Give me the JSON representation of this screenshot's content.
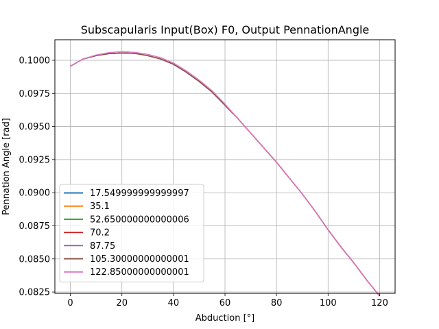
{
  "chart_data": {
    "type": "line",
    "title": "Subscapularis Input(Box) F0, Output PennationAngle",
    "xlabel": "Abduction [°]",
    "ylabel": "Pennation Angle [rad]",
    "xlim": [
      -6,
      126
    ],
    "ylim": [
      0.0824,
      0.10155
    ],
    "xticks": [
      0,
      20,
      40,
      60,
      80,
      100,
      120
    ],
    "xtick_labels": [
      "0",
      "20",
      "40",
      "60",
      "80",
      "100",
      "120"
    ],
    "yticks": [
      0.0825,
      0.085,
      0.0875,
      0.09,
      0.0925,
      0.095,
      0.0975,
      0.1
    ],
    "ytick_labels": [
      "0.0825",
      "0.0850",
      "0.0875",
      "0.0900",
      "0.0925",
      "0.0950",
      "0.0975",
      "0.1000"
    ],
    "grid": true,
    "legend_position": "lower-left",
    "x": [
      0,
      5,
      10,
      15,
      20,
      25,
      30,
      35,
      40,
      45,
      50,
      55,
      60,
      65,
      70,
      75,
      80,
      85,
      90,
      95,
      100,
      105,
      110,
      115,
      120
    ],
    "series": [
      {
        "name": "17.549999999999997",
        "color": "#1f77b4",
        "values": [
          0.09955,
          0.1001,
          0.10035,
          0.1005,
          0.10055,
          0.10052,
          0.10035,
          0.1001,
          0.0997,
          0.0991,
          0.0984,
          0.0976,
          0.0966,
          0.0956,
          0.0945,
          0.0934,
          0.0923,
          0.0911,
          0.0899,
          0.0886,
          0.0872,
          0.0859,
          0.0847,
          0.0834,
          0.0822
        ]
      },
      {
        "name": "35.1",
        "color": "#ff7f0e",
        "values": [
          0.09955,
          0.1001,
          0.10035,
          0.1005,
          0.10055,
          0.10052,
          0.10035,
          0.1001,
          0.0997,
          0.0991,
          0.0984,
          0.0976,
          0.0966,
          0.0956,
          0.0945,
          0.0934,
          0.0923,
          0.0911,
          0.0899,
          0.0886,
          0.0872,
          0.0859,
          0.0847,
          0.0834,
          0.0822
        ]
      },
      {
        "name": "52.650000000000006",
        "color": "#2ca02c",
        "values": [
          0.09955,
          0.1001,
          0.10035,
          0.1005,
          0.10055,
          0.10052,
          0.10035,
          0.1001,
          0.0997,
          0.0991,
          0.0984,
          0.0976,
          0.0966,
          0.0956,
          0.0945,
          0.0934,
          0.0923,
          0.0911,
          0.0899,
          0.0886,
          0.0872,
          0.0859,
          0.0847,
          0.0834,
          0.0822
        ]
      },
      {
        "name": "70.2",
        "color": "#d62728",
        "values": [
          0.09955,
          0.1001,
          0.10035,
          0.1005,
          0.10055,
          0.10052,
          0.10035,
          0.1001,
          0.0997,
          0.0991,
          0.0984,
          0.0976,
          0.0966,
          0.0956,
          0.0945,
          0.0934,
          0.0923,
          0.0911,
          0.0899,
          0.0886,
          0.0872,
          0.0859,
          0.0847,
          0.0834,
          0.0822
        ]
      },
      {
        "name": "87.75",
        "color": "#9467bd",
        "values": [
          0.09955,
          0.1001,
          0.10035,
          0.1005,
          0.10055,
          0.10052,
          0.10035,
          0.1001,
          0.0997,
          0.0991,
          0.0984,
          0.0976,
          0.0966,
          0.0956,
          0.0945,
          0.0934,
          0.0923,
          0.0911,
          0.0899,
          0.0886,
          0.0872,
          0.0859,
          0.0847,
          0.0834,
          0.0822
        ]
      },
      {
        "name": "105.30000000000001",
        "color": "#8c564b",
        "values": [
          0.09955,
          0.1001,
          0.10035,
          0.1005,
          0.10055,
          0.10052,
          0.10035,
          0.1001,
          0.0997,
          0.0991,
          0.0984,
          0.0976,
          0.0966,
          0.0956,
          0.0945,
          0.0934,
          0.0923,
          0.0911,
          0.0899,
          0.0886,
          0.0872,
          0.0859,
          0.0847,
          0.0834,
          0.0822
        ]
      },
      {
        "name": "122.85000000000001",
        "color": "#e377c2",
        "values": [
          0.09955,
          0.1001,
          0.1004,
          0.10058,
          0.10065,
          0.1006,
          0.10045,
          0.1002,
          0.0998,
          0.0992,
          0.0985,
          0.0977,
          0.0967,
          0.0956,
          0.0945,
          0.0934,
          0.0923,
          0.0911,
          0.0899,
          0.0886,
          0.0872,
          0.0859,
          0.0847,
          0.0834,
          0.0822
        ]
      }
    ]
  }
}
